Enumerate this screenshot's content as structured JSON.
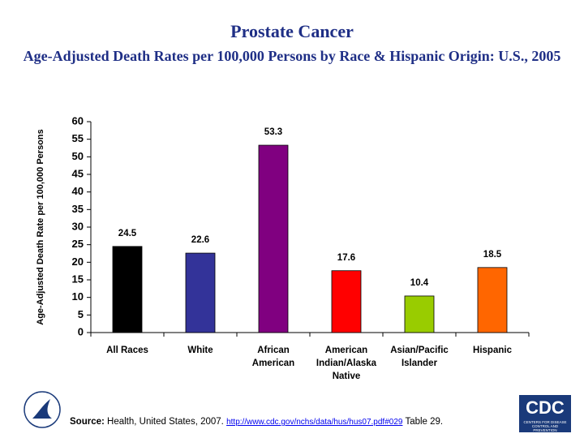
{
  "chart_data": {
    "type": "bar",
    "title": "Prostate Cancer",
    "subtitle": "Age-Adjusted Death Rates per 100,000 Persons by Race & Hispanic Origin: U.S., 2005",
    "ylabel": "Age-Adjusted Death Rate per 100,000 Persons",
    "categories": [
      "All Races",
      "White",
      "African American",
      "American Indian/Alaska Native",
      "Asian/Pacific Islander",
      "Hispanic"
    ],
    "values": [
      24.5,
      22.6,
      53.3,
      17.6,
      10.4,
      18.5
    ],
    "colors": [
      "#000000",
      "#333399",
      "#800080",
      "#ff0000",
      "#99cc00",
      "#ff6600"
    ],
    "ylim": [
      0,
      60
    ],
    "yticks": [
      0,
      5,
      10,
      15,
      20,
      25,
      30,
      35,
      40,
      45,
      50,
      55,
      60
    ],
    "grid": false
  },
  "footer": {
    "source_label": "Source:",
    "source_text": "Health, United States, 2007.",
    "link": "http://www.cdc.gov/nchs/data/hus/hus07.pdf#029",
    "table": "Table 29.",
    "logo_text": "CDC",
    "logo_subtext": "CENTERS FOR DISEASE CONTROL AND PREVENTION"
  }
}
